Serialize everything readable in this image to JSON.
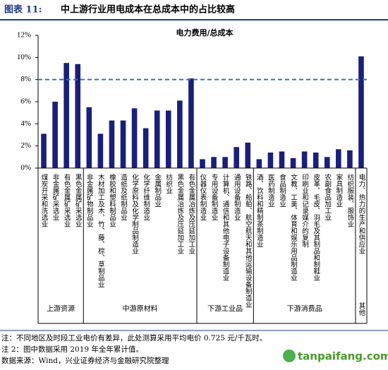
{
  "chart_data": {
    "type": "bar",
    "figure_label": "图表 11:",
    "title": "中上游行业用电成本在总成本中的占比较高",
    "subtitle": "电力费用/总成本",
    "categories": [
      "煤炭开采和洗选业",
      "非金属矿采选业",
      "有色金属矿采选业",
      "黑色金属矿采选业",
      "非金属矿物制品业",
      "木材加工及木、竹、藤、棕、草制品业",
      "橡胶和塑料制品业",
      "造纸及纸制品业",
      "化学原料及化学制品制造业",
      "化学纤维制造业",
      "金属制品业",
      "纺织业",
      "黑色金属冶炼及压延加工业",
      "有色金属冶炼及压延加工业",
      "仪器仪表制造业",
      "专用设备制造业",
      "计算机、通信和其他电子设备制造业",
      "通用设备制造业",
      "铁路、船舶、航空航天和其他运输设备制造业",
      "酒、饮料和精制茶制造业",
      "医药制造业",
      "食品制造业",
      "文教、工美、体育和娱乐用品制造业",
      "印刷业和记录媒介的复制",
      "皮革、毛皮、羽毛及其制品和制鞋业",
      "农副食品加工业",
      "家具制造业",
      "纺织服装、服饰业",
      "电力、热力的生产和供应业"
    ],
    "values": [
      3.1,
      6.0,
      9.5,
      9.4,
      5.5,
      3.1,
      4.3,
      4.3,
      5.4,
      3.6,
      5.2,
      5.2,
      6.1,
      8.1,
      0.8,
      1.0,
      1.0,
      1.9,
      2.3,
      0.8,
      1.4,
      1.5,
      0.9,
      1.5,
      1.4,
      1.0,
      1.7,
      1.6,
      10.1
    ],
    "color": "#1a1f7a",
    "groups": [
      "上游资源",
      "中游原材料",
      "下游工业品",
      "下游消费品",
      "其他"
    ],
    "reference_line": 8,
    "reference_color": "#2e75b6",
    "ylim": [
      0,
      12
    ],
    "yticks": [
      {
        "value": 0,
        "label": "0%"
      },
      {
        "value": 2,
        "label": "2%"
      },
      {
        "value": 4,
        "label": "4%"
      },
      {
        "value": 6,
        "label": "6%"
      },
      {
        "value": 8,
        "label": "8%"
      },
      {
        "value": 10,
        "label": "10%"
      },
      {
        "value": 12,
        "label": "12%"
      }
    ],
    "notes": [
      "注：不同地区及时段工业电价有差异，此处测算采用平均电价 0.725 元/千瓦时。",
      "注 2：图中数据采用 2019 年全年累计值。",
      "数据来源：Wind，兴业证券经济与金融研究院整理"
    ],
    "watermark": "tanpaifang.com"
  }
}
